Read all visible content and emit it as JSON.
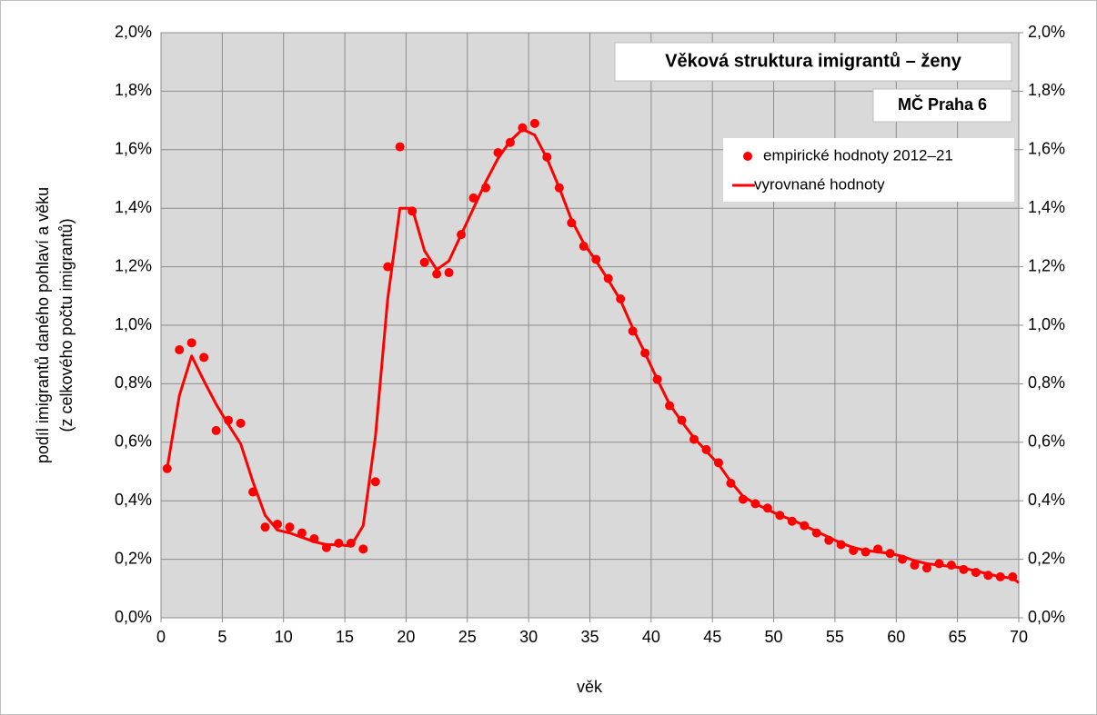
{
  "chart_data": {
    "type": "line",
    "title": "Věková struktura imigrantů – ženy",
    "subtitle": "MČ Praha 6",
    "xlabel": "věk",
    "ylabel": [
      "podíl imigrantů daného pohlaví a věku",
      "(z celkového počtu imigrantů)"
    ],
    "xlim": [
      0,
      70
    ],
    "xticks": [
      0,
      5,
      10,
      15,
      20,
      25,
      30,
      35,
      40,
      45,
      50,
      55,
      60,
      65,
      70
    ],
    "ylim": [
      0,
      2
    ],
    "yticks": [
      {
        "value": 0,
        "label": "0,0%"
      },
      {
        "value": 0.2,
        "label": "0,2%"
      },
      {
        "value": 0.4,
        "label": "0,4%"
      },
      {
        "value": 0.6,
        "label": "0,6%"
      },
      {
        "value": 0.8,
        "label": "0,8%"
      },
      {
        "value": 1.0,
        "label": "1,0%"
      },
      {
        "value": 1.2,
        "label": "1,2%"
      },
      {
        "value": 1.4,
        "label": "1,4%"
      },
      {
        "value": 1.6,
        "label": "1,6%"
      },
      {
        "value": 1.8,
        "label": "1,8%"
      },
      {
        "value": 2.0,
        "label": "2,0%"
      }
    ],
    "y2lim": [
      0,
      2
    ],
    "y2ticks": [
      {
        "value": 0,
        "label": "0,0%"
      },
      {
        "value": 0.2,
        "label": "0,2%"
      },
      {
        "value": 0.4,
        "label": "0,4%"
      },
      {
        "value": 0.6,
        "label": "0,6%"
      },
      {
        "value": 0.8,
        "label": "0,8%"
      },
      {
        "value": 1.0,
        "label": "1,0%"
      },
      {
        "value": 1.2,
        "label": "1,2%"
      },
      {
        "value": 1.4,
        "label": "1,4%"
      },
      {
        "value": 1.6,
        "label": "1,6%"
      },
      {
        "value": 1.8,
        "label": "1,8%"
      },
      {
        "value": 2.0,
        "label": "2,0%"
      }
    ],
    "grid": true,
    "legend": "upper right",
    "series": [
      {
        "name": "empirické hodnoty 2012–21",
        "color": "#ff0000",
        "style": "markers",
        "x": [
          0.5,
          1.5,
          2.5,
          3.5,
          4.5,
          5.5,
          6.5,
          7.5,
          8.5,
          9.5,
          10.5,
          11.5,
          12.5,
          13.5,
          14.5,
          15.5,
          16.5,
          17.5,
          18.5,
          19.5,
          20.5,
          21.5,
          22.5,
          23.5,
          24.5,
          25.5,
          26.5,
          27.5,
          28.5,
          29.5,
          30.5,
          31.5,
          32.5,
          33.5,
          34.5,
          35.5,
          36.5,
          37.5,
          38.5,
          39.5,
          40.5,
          41.5,
          42.5,
          43.5,
          44.5,
          45.5,
          46.5,
          47.5,
          48.5,
          49.5,
          50.5,
          51.5,
          52.5,
          53.5,
          54.5,
          55.5,
          56.5,
          57.5,
          58.5,
          59.5,
          60.5,
          61.5,
          62.5,
          63.5,
          64.5,
          65.5,
          66.5,
          67.5,
          68.5,
          69.5
        ],
        "values": [
          0.51,
          0.916,
          0.94,
          0.89,
          0.64,
          0.675,
          0.665,
          0.43,
          0.31,
          0.32,
          0.31,
          0.29,
          0.27,
          0.24,
          0.255,
          0.255,
          0.235,
          0.465,
          1.2,
          1.61,
          1.39,
          1.215,
          1.175,
          1.18,
          1.31,
          1.435,
          1.47,
          1.59,
          1.625,
          1.675,
          1.69,
          1.575,
          1.47,
          1.35,
          1.27,
          1.225,
          1.16,
          1.09,
          0.98,
          0.905,
          0.815,
          0.725,
          0.675,
          0.61,
          0.575,
          0.53,
          0.46,
          0.405,
          0.39,
          0.375,
          0.35,
          0.33,
          0.315,
          0.29,
          0.265,
          0.25,
          0.23,
          0.225,
          0.235,
          0.22,
          0.2,
          0.18,
          0.17,
          0.185,
          0.18,
          0.165,
          0.155,
          0.145,
          0.14,
          0.14
        ]
      },
      {
        "name": "vyrovnané hodnoty",
        "color": "#ff0000",
        "style": "line",
        "x": [
          0.5,
          1.5,
          2.5,
          3.5,
          4.5,
          5.5,
          6.5,
          7.5,
          8.5,
          9.5,
          10.5,
          11.5,
          12.5,
          13.5,
          14.5,
          15.5,
          16.5,
          17.5,
          18.5,
          19.5,
          20.5,
          21.5,
          22.5,
          23.5,
          24.5,
          25.5,
          26.5,
          27.5,
          28.5,
          29.5,
          30.5,
          31.5,
          32.5,
          33.5,
          34.5,
          35.5,
          36.5,
          37.5,
          38.5,
          39.5,
          40.5,
          41.5,
          42.5,
          43.5,
          44.5,
          45.5,
          46.5,
          47.5,
          48.5,
          49.5,
          50.5,
          51.5,
          52.5,
          53.5,
          54.5,
          55.5,
          56.5,
          57.5,
          58.5,
          59.5,
          60.5,
          61.5,
          62.5,
          63.5,
          64.5,
          65.5,
          66.5,
          67.5,
          68.5,
          69.5,
          70
        ],
        "values": [
          0.51,
          0.76,
          0.895,
          0.81,
          0.73,
          0.66,
          0.595,
          0.465,
          0.35,
          0.3,
          0.29,
          0.275,
          0.26,
          0.25,
          0.25,
          0.245,
          0.315,
          0.62,
          1.09,
          1.4,
          1.4,
          1.255,
          1.19,
          1.22,
          1.31,
          1.4,
          1.49,
          1.57,
          1.63,
          1.67,
          1.65,
          1.57,
          1.47,
          1.36,
          1.28,
          1.22,
          1.155,
          1.085,
          0.99,
          0.905,
          0.815,
          0.73,
          0.67,
          0.615,
          0.57,
          0.525,
          0.465,
          0.415,
          0.39,
          0.37,
          0.35,
          0.335,
          0.315,
          0.295,
          0.275,
          0.255,
          0.24,
          0.23,
          0.225,
          0.22,
          0.21,
          0.195,
          0.185,
          0.18,
          0.175,
          0.17,
          0.16,
          0.15,
          0.14,
          0.135,
          0.12
        ]
      }
    ]
  }
}
